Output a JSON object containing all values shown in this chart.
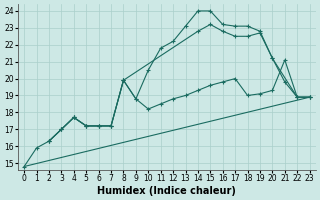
{
  "xlabel": "Humidex (Indice chaleur)",
  "xlim": [
    -0.5,
    23.5
  ],
  "ylim": [
    14.6,
    24.4
  ],
  "yticks": [
    15,
    16,
    17,
    18,
    19,
    20,
    21,
    22,
    23,
    24
  ],
  "xticks": [
    0,
    1,
    2,
    3,
    4,
    5,
    6,
    7,
    8,
    9,
    10,
    11,
    12,
    13,
    14,
    15,
    16,
    17,
    18,
    19,
    20,
    21,
    22,
    23
  ],
  "bg_color": "#cde8e5",
  "grid_color": "#aacfcb",
  "line_color": "#1a6b60",
  "line1_x": [
    0,
    1,
    2,
    3,
    4,
    5,
    6,
    7,
    8,
    9,
    10,
    11,
    12,
    13,
    14,
    15,
    16,
    17,
    18,
    19,
    20,
    21,
    22,
    23
  ],
  "line1_y": [
    14.8,
    15.9,
    16.3,
    17.0,
    17.7,
    17.2,
    17.2,
    17.2,
    19.9,
    18.8,
    20.5,
    21.8,
    22.2,
    23.1,
    24.0,
    24.0,
    23.2,
    23.1,
    23.1,
    22.8,
    21.2,
    19.8,
    18.9,
    18.9
  ],
  "line2_x": [
    2,
    3,
    4,
    5,
    6,
    7,
    8,
    14,
    15,
    16,
    17,
    18,
    19,
    20,
    22,
    23
  ],
  "line2_y": [
    16.3,
    17.0,
    17.7,
    17.2,
    17.2,
    17.2,
    19.9,
    22.8,
    23.2,
    22.8,
    22.5,
    22.5,
    22.7,
    21.2,
    18.9,
    18.9
  ],
  "line3_x": [
    2,
    3,
    4,
    5,
    6,
    7,
    8,
    9,
    10,
    11,
    12,
    13,
    14,
    15,
    16,
    17,
    18,
    19,
    20,
    21,
    22,
    23
  ],
  "line3_y": [
    16.3,
    17.0,
    17.7,
    17.2,
    17.2,
    17.2,
    19.9,
    18.8,
    18.2,
    18.5,
    18.8,
    19.0,
    19.3,
    19.6,
    19.8,
    20.0,
    19.0,
    19.1,
    19.3,
    21.1,
    18.9,
    18.9
  ],
  "line4_x": [
    0,
    23
  ],
  "line4_y": [
    14.8,
    18.9
  ]
}
